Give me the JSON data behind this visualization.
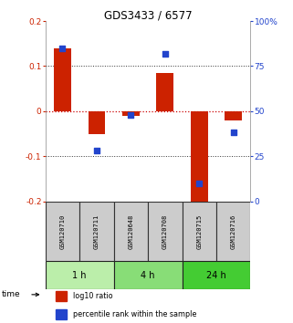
{
  "title": "GDS3433 / 6577",
  "samples": [
    "GSM120710",
    "GSM120711",
    "GSM120648",
    "GSM120708",
    "GSM120715",
    "GSM120716"
  ],
  "log10_ratio": [
    0.14,
    -0.052,
    -0.01,
    0.085,
    -0.21,
    -0.02
  ],
  "percentile_rank": [
    85,
    28,
    48,
    82,
    10,
    38
  ],
  "ylim_left": [
    -0.2,
    0.2
  ],
  "ylim_right": [
    0,
    100
  ],
  "yticks_left": [
    -0.2,
    -0.1,
    0.0,
    0.1,
    0.2
  ],
  "yticks_right": [
    0,
    25,
    50,
    75,
    100
  ],
  "ytick_labels_right": [
    "0",
    "25",
    "50",
    "75",
    "100%"
  ],
  "bar_color": "#cc2200",
  "square_color": "#2244cc",
  "zero_line_color": "#cc0000",
  "dotted_line_color": "#333333",
  "groups": [
    {
      "label": "1 h",
      "indices": [
        0,
        1
      ],
      "color": "#bbeeaa"
    },
    {
      "label": "4 h",
      "indices": [
        2,
        3
      ],
      "color": "#88dd77"
    },
    {
      "label": "24 h",
      "indices": [
        4,
        5
      ],
      "color": "#44cc33"
    }
  ],
  "time_label": "time",
  "legend": [
    {
      "label": "log10 ratio",
      "color": "#cc2200"
    },
    {
      "label": "percentile rank within the sample",
      "color": "#2244cc"
    }
  ],
  "bar_width": 0.5,
  "sample_box_color": "#cccccc",
  "sample_box_edge_color": "#333333",
  "bg_color": "#ffffff"
}
